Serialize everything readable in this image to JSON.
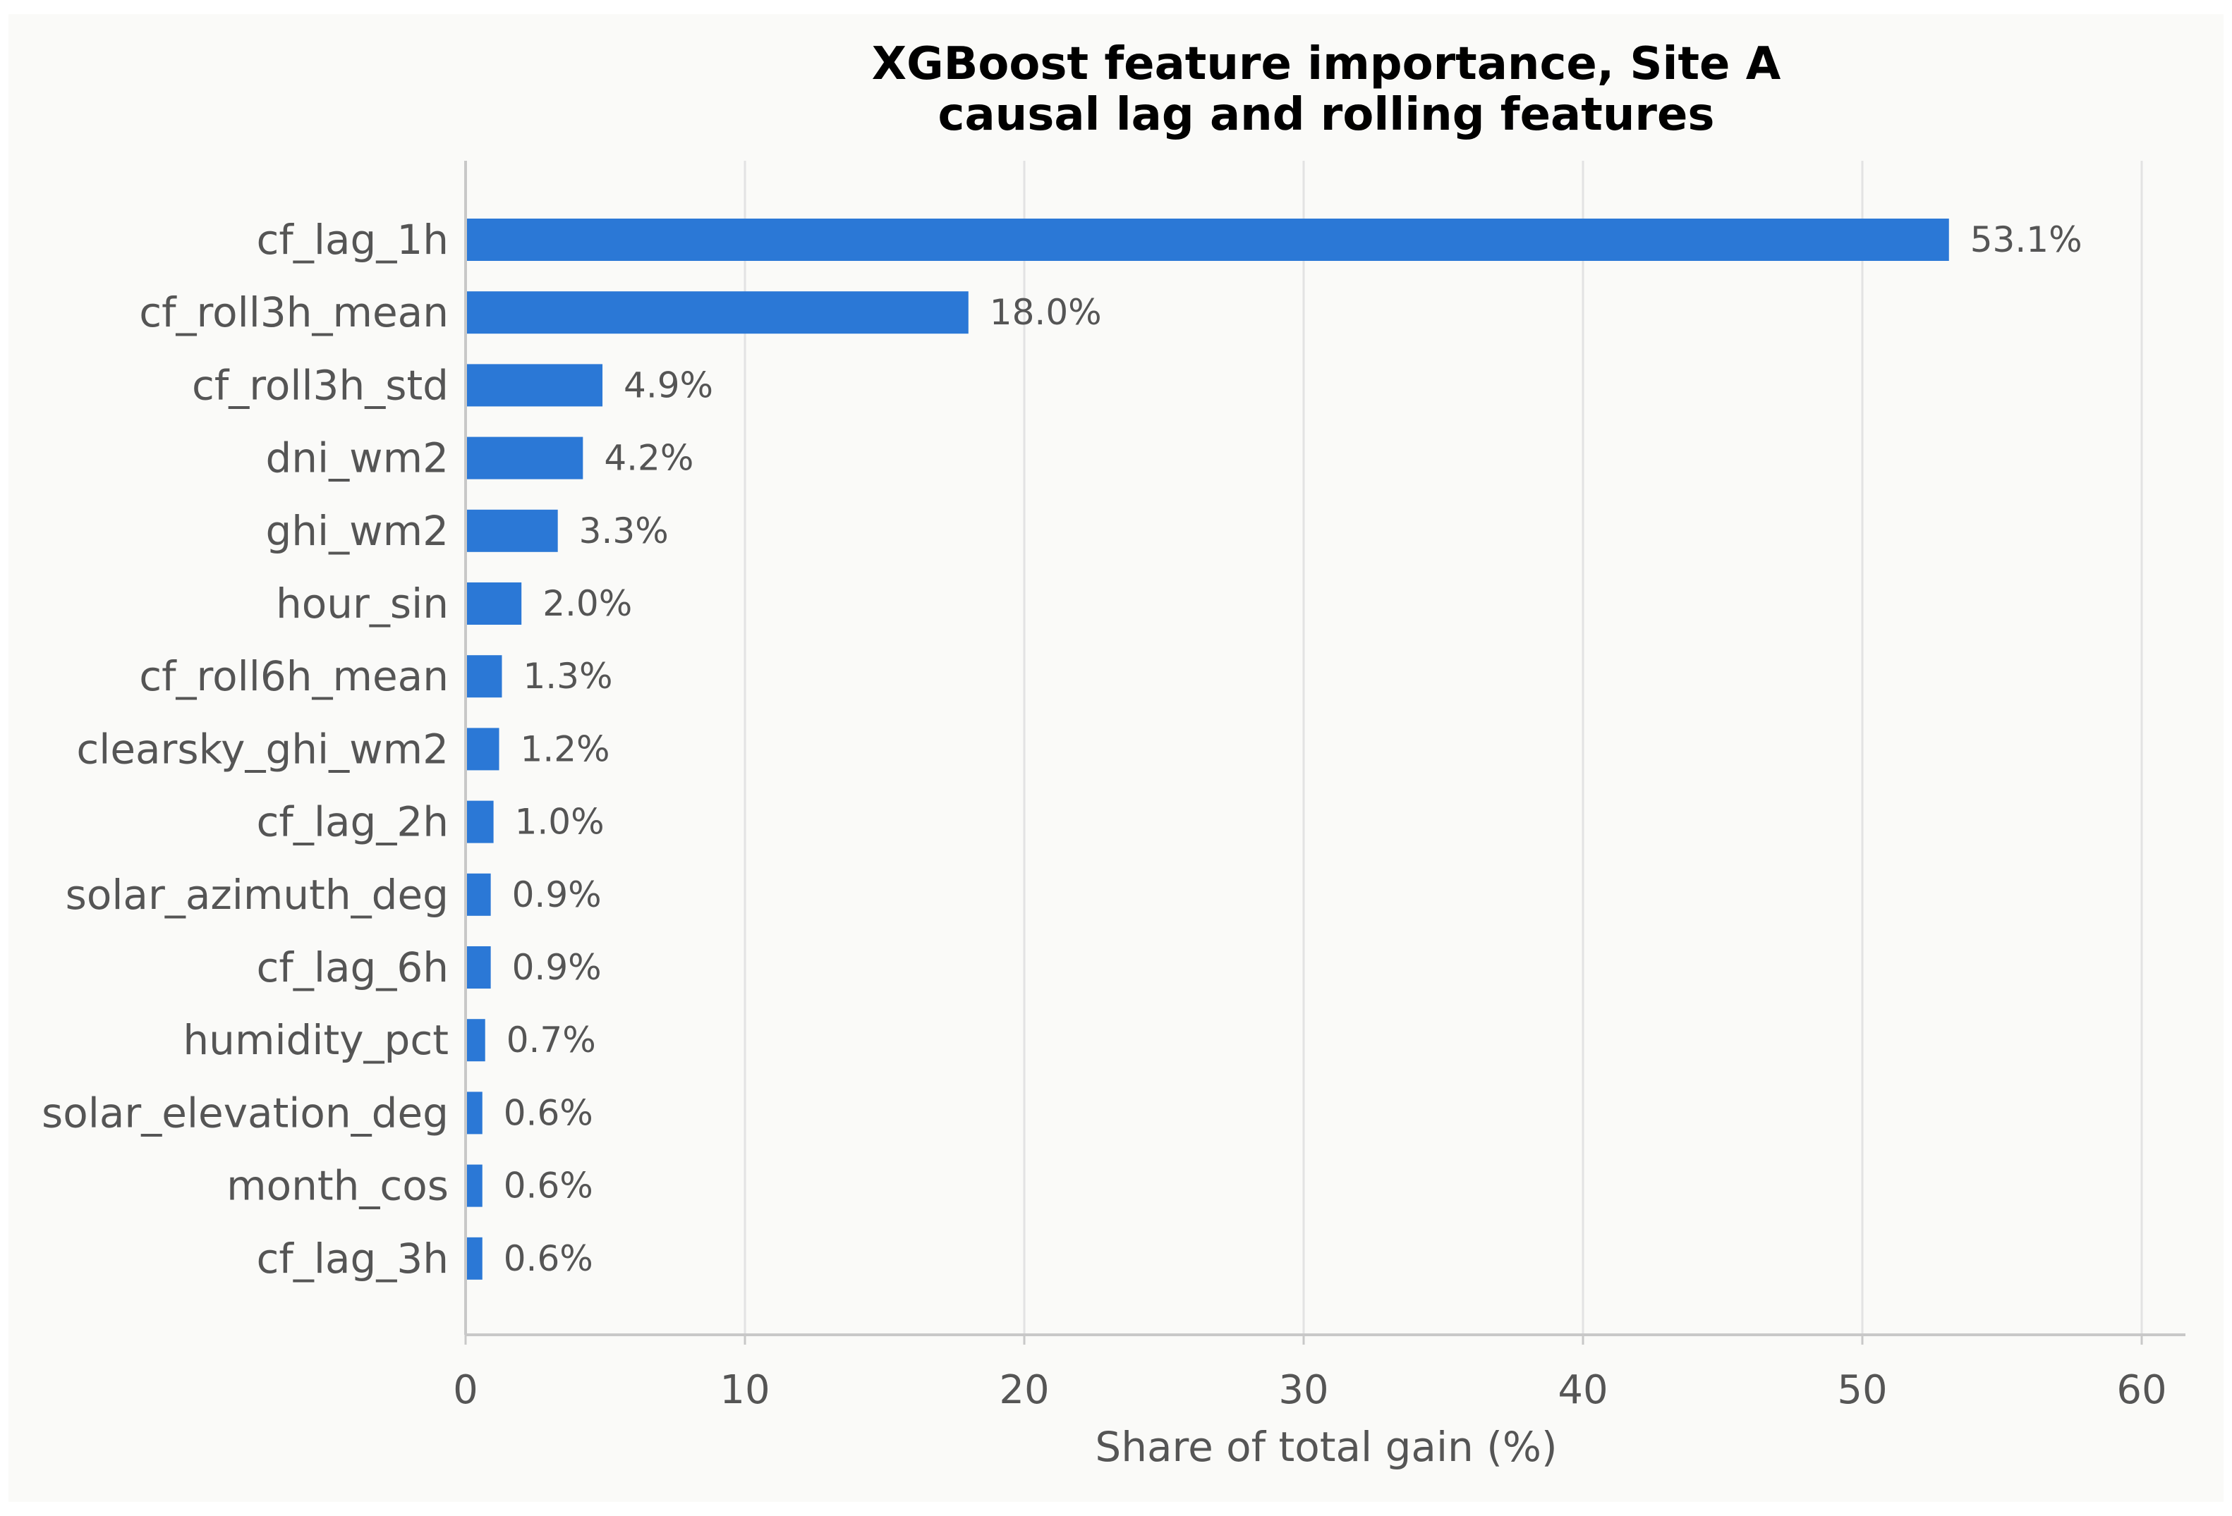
{
  "chart_data": {
    "type": "bar",
    "orientation": "horizontal",
    "title": "XGBoost feature importance, Site A",
    "subtitle": "causal lag and rolling features",
    "xlabel": "Share of total gain (%)",
    "ylabel": "",
    "xlim": [
      0,
      60
    ],
    "xticks": [
      0,
      10,
      20,
      30,
      40,
      50,
      60
    ],
    "grid": true,
    "categories": [
      "cf_lag_1h",
      "cf_roll3h_mean",
      "cf_roll3h_std",
      "dni_wm2",
      "ghi_wm2",
      "hour_sin",
      "cf_roll6h_mean",
      "clearsky_ghi_wm2",
      "cf_lag_2h",
      "solar_azimuth_deg",
      "cf_lag_6h",
      "humidity_pct",
      "solar_elevation_deg",
      "month_cos",
      "cf_lag_3h"
    ],
    "values": [
      53.1,
      18.0,
      4.9,
      4.2,
      3.3,
      2.0,
      1.3,
      1.2,
      1.0,
      0.9,
      0.9,
      0.7,
      0.6,
      0.6,
      0.6
    ],
    "data_labels": [
      "53.1%",
      "18.0%",
      "4.9%",
      "4.2%",
      "3.3%",
      "2.0%",
      "1.3%",
      "1.2%",
      "1.0%",
      "0.9%",
      "0.9%",
      "0.7%",
      "0.6%",
      "0.6%",
      "0.6%"
    ],
    "colors": {
      "bar": "#2b78d6",
      "background": "#fafaf8",
      "grid": "#e3e3e3",
      "axis": "#c8c8c8"
    }
  }
}
